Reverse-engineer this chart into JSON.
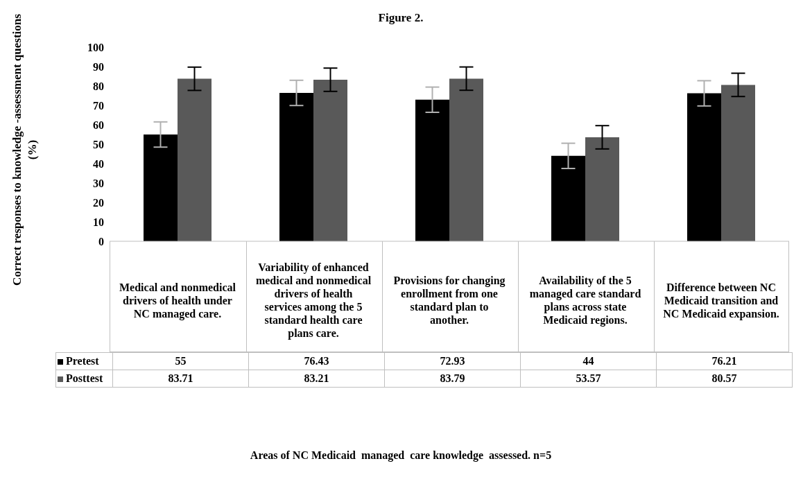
{
  "chart_data": {
    "type": "bar",
    "title": "Figure 2.",
    "annotations": [
      "Areas of NC Medicaid  managed  care knowledge  assessed. n=5"
    ],
    "ylabel": "Correct responses to knowledge -assessment questions (%)",
    "categories": [
      "Medical and nonmedical drivers of health under NC managed care.",
      "Variability of enhanced medical and nonmedical drivers of health services among the 5 standard health care plans care.",
      "Provisions for changing enrollment from one standard plan to another.",
      "Availability of the 5 managed care standard plans across state Medicaid regions.",
      "Difference between NC Medicaid transition and NC Medicaid expansion."
    ],
    "series": [
      {
        "name": "Pretest",
        "color": "#000000",
        "values": [
          55,
          76.43,
          72.93,
          44,
          76.21
        ],
        "errors": [
          6.5,
          6.5,
          6.5,
          6.5,
          6.5
        ]
      },
      {
        "name": "Posttest",
        "color": "#595959",
        "values": [
          83.71,
          83.21,
          83.79,
          53.57,
          80.57
        ],
        "errors": [
          6,
          6,
          6,
          6,
          6
        ]
      }
    ],
    "ylim": [
      0,
      100
    ],
    "yticks": [
      0,
      10,
      20,
      30,
      40,
      50,
      60,
      70,
      80,
      90,
      100
    ],
    "grid": false,
    "legend": "bottom",
    "data_labels": true
  }
}
